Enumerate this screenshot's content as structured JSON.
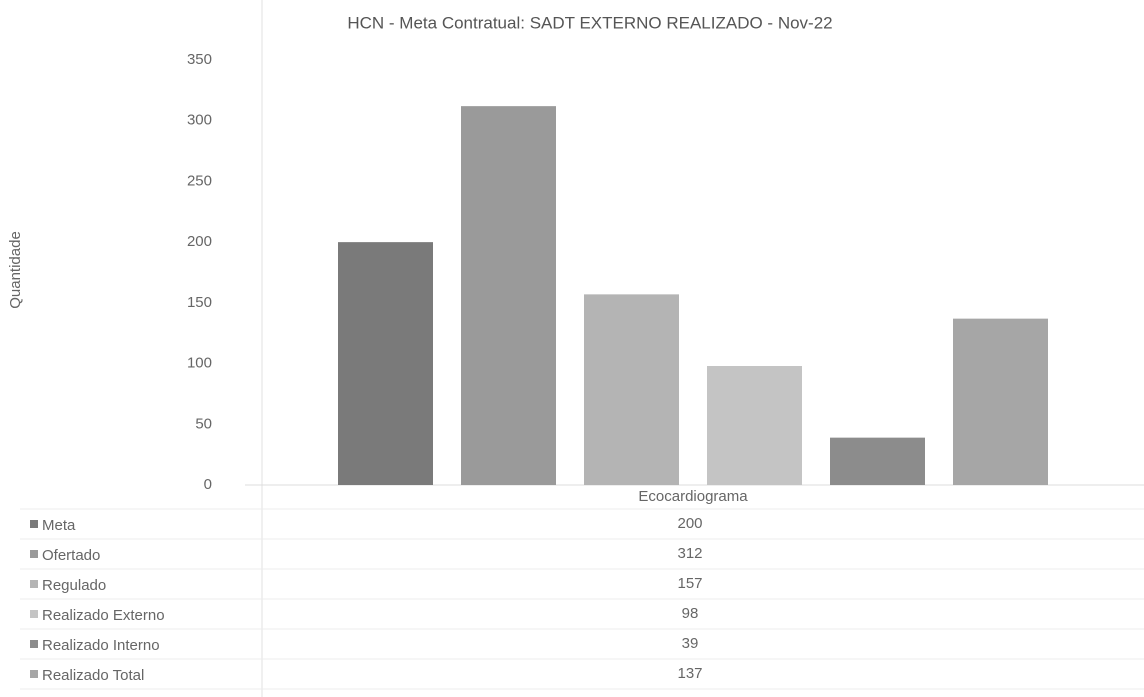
{
  "chart_data": {
    "type": "bar",
    "title": "HCN - Meta Contratual: SADT EXTERNO REALIZADO - Nov-22",
    "y_label": "Quantidade",
    "categories": [
      "Ecocardiograma"
    ],
    "series": [
      {
        "name": "Meta",
        "color": "#7a7a7a",
        "values": [
          200
        ]
      },
      {
        "name": "Ofertado",
        "color": "#9a9a9a",
        "values": [
          312
        ]
      },
      {
        "name": "Regulado",
        "color": "#b4b4b4",
        "values": [
          157
        ]
      },
      {
        "name": "Realizado Externo",
        "color": "#c4c4c4",
        "values": [
          98
        ]
      },
      {
        "name": "Realizado Interno",
        "color": "#8c8c8c",
        "values": [
          39
        ]
      },
      {
        "name": "Realizado Total",
        "color": "#a6a6a6",
        "values": [
          137
        ]
      }
    ],
    "ylim": [
      0,
      350
    ],
    "yticks": [
      0,
      50,
      100,
      150,
      200,
      250,
      300,
      350
    ],
    "grid": false,
    "legend": "table"
  }
}
